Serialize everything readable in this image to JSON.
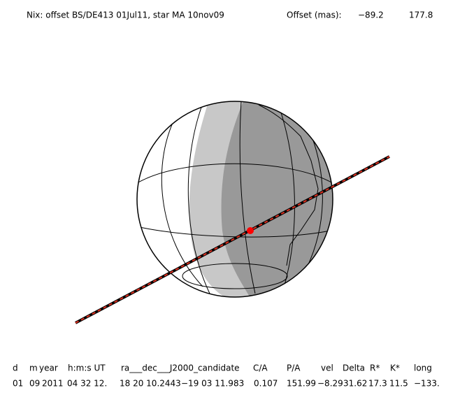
{
  "header": {
    "title": "Nix: offset BS/DE413 01Jul11, star MA 10nov09",
    "offset_label": "Offset (mas):",
    "offset_values": [
      "−89.2",
      "177.8"
    ]
  },
  "table": {
    "columns": [
      "d",
      "m",
      "year",
      "h:m:s UT",
      "ra___dec___J2000_candidate",
      "C/A",
      "P/A",
      "vel",
      "Delta",
      "R*",
      "K*",
      "long"
    ],
    "rows": [
      [
        "01",
        "09",
        "2011",
        "04 32 12.",
        "18 20 10.2443",
        "−19 03 11.983",
        "0.107",
        "151.99",
        "−8.29",
        "31.62",
        "17.3",
        "11.5",
        "−133."
      ]
    ]
  }
}
